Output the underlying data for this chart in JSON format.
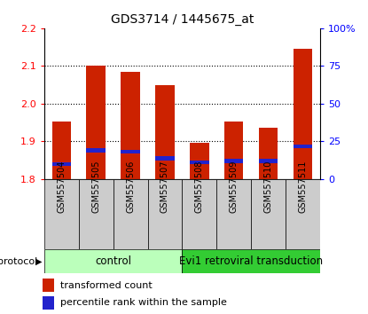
{
  "title": "GDS3714 / 1445675_at",
  "samples": [
    "GSM557504",
    "GSM557505",
    "GSM557506",
    "GSM557507",
    "GSM557508",
    "GSM557509",
    "GSM557510",
    "GSM557511"
  ],
  "red_values": [
    1.952,
    2.1,
    2.085,
    2.048,
    1.895,
    1.952,
    1.935,
    2.145
  ],
  "blue_values": [
    1.84,
    1.876,
    1.873,
    1.855,
    1.845,
    1.848,
    1.848,
    1.887
  ],
  "ymin": 1.8,
  "ymax": 2.2,
  "yticks": [
    1.8,
    1.9,
    2.0,
    2.1,
    2.2
  ],
  "right_yticks": [
    0,
    25,
    50,
    75,
    100
  ],
  "bar_width": 0.55,
  "bar_color": "#cc2200",
  "blue_color": "#2222cc",
  "bg_color": "#ffffff",
  "grid_color": "#000000",
  "sample_box_color": "#cccccc",
  "protocol_groups": [
    {
      "label": "control",
      "start": 0,
      "end": 3,
      "color": "#bbffbb"
    },
    {
      "label": "Evi1 retroviral transduction",
      "start": 4,
      "end": 7,
      "color": "#33cc33"
    }
  ],
  "protocol_label": "protocol",
  "legend_red": "transformed count",
  "legend_blue": "percentile rank within the sample",
  "title_fontsize": 10,
  "tick_fontsize": 8,
  "sample_fontsize": 7,
  "proto_fontsize": 8.5,
  "legend_fontsize": 8
}
